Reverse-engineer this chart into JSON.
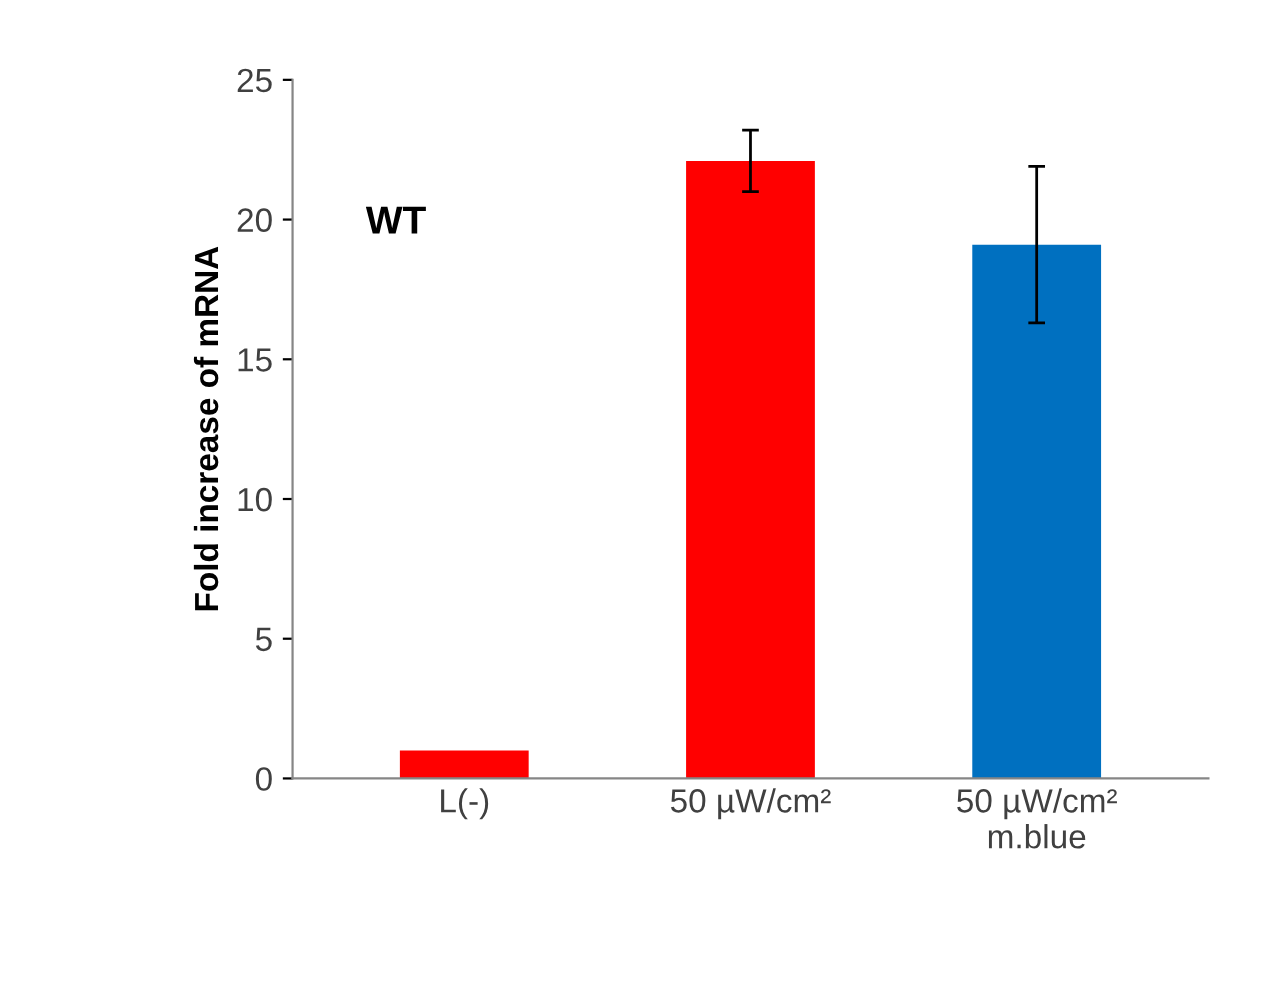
{
  "chart_data": {
    "type": "bar",
    "ylabel": "Fold increase of mRNA",
    "annotations": [
      "WT"
    ],
    "categories": [
      "L(-)",
      "50 µW/cm²",
      "50 µW/cm²\nm.blue"
    ],
    "values": [
      1.0,
      22.1,
      19.1
    ],
    "colors": [
      "#ff0000",
      "#ff0000",
      "#0070c0"
    ],
    "errors": [
      null,
      1.1,
      2.8
    ],
    "ylim": [
      0,
      25
    ],
    "yticks": [
      0,
      5,
      10,
      15,
      20,
      25
    ],
    "grid": false,
    "legend": false
  }
}
